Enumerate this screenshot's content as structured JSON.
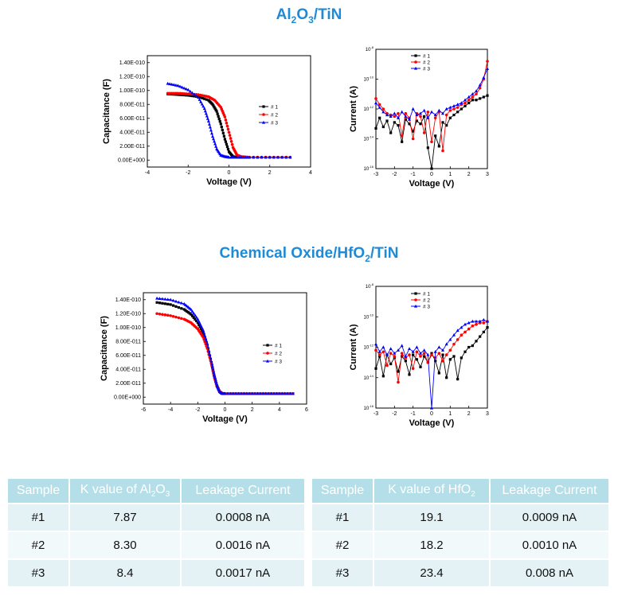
{
  "sections": [
    {
      "title_main": "Al",
      "title_sub1": "2",
      "title_mid": "O",
      "title_sub2": "3",
      "title_end": "/TiN"
    },
    {
      "title_main": "Chemical Oxide/HfO",
      "title_sub1": "2",
      "title_mid": "",
      "title_sub2": "",
      "title_end": "/TiN"
    }
  ],
  "chart_data": [
    {
      "type": "line",
      "id": "cv1",
      "xlabel": "Voltage (V)",
      "ylabel": "Capacitance (F)",
      "xlim": [
        -4,
        4
      ],
      "ylim": [
        -1e-11,
        1.5e-10
      ],
      "xticks": [
        "-4",
        "-2",
        "0",
        "2",
        "4"
      ],
      "yticks": [
        "0.00E+000",
        "2.00E-011",
        "4.00E-011",
        "6.00E-011",
        "8.00E-011",
        "1.00E-010",
        "1.20E-010",
        "1.40E-010"
      ],
      "legend": [
        "# 1",
        "# 2",
        "# 3"
      ],
      "colors": [
        "#000000",
        "#ff0000",
        "#0000ff"
      ],
      "series": [
        {
          "name": "# 1",
          "x": [
            -3,
            -2.5,
            -2,
            -1.5,
            -1,
            -0.8,
            -0.6,
            -0.4,
            -0.2,
            0,
            0.2,
            0.5,
            1,
            2,
            3
          ],
          "y": [
            9.5e-11,
            9.4e-11,
            9.3e-11,
            9.1e-11,
            8.6e-11,
            8e-11,
            7e-11,
            5.2e-11,
            3e-11,
            1.2e-11,
            5e-12,
            4e-12,
            4e-12,
            4e-12,
            4e-12
          ]
        },
        {
          "name": "# 2",
          "x": [
            -3,
            -2.5,
            -2,
            -1.5,
            -1,
            -0.7,
            -0.4,
            -0.2,
            0,
            0.2,
            0.4,
            0.6,
            1,
            2,
            3
          ],
          "y": [
            9.6e-11,
            9.6e-11,
            9.5e-11,
            9.4e-11,
            9.1e-11,
            8.6e-11,
            7.6e-11,
            6.2e-11,
            4e-11,
            1.8e-11,
            7e-12,
            5e-12,
            4e-12,
            4e-12,
            4e-12
          ]
        },
        {
          "name": "# 3",
          "x": [
            -3,
            -2.5,
            -2,
            -1.5,
            -1.2,
            -1,
            -0.8,
            -0.6,
            -0.4,
            -0.2,
            0,
            0.5,
            1,
            2,
            3
          ],
          "y": [
            1.1e-10,
            1.07e-10,
            1.01e-10,
            9e-11,
            7.4e-11,
            5.6e-11,
            3.4e-11,
            1.6e-11,
            7e-12,
            5e-12,
            4e-12,
            4e-12,
            4e-12,
            4e-12,
            4e-12
          ]
        }
      ]
    },
    {
      "type": "line",
      "id": "iv1",
      "xlabel": "Voltage (V)",
      "ylabel": "Current (A)",
      "xlim": [
        -3,
        3
      ],
      "ylim_log": [
        -16,
        -8
      ],
      "yscale": "log",
      "xticks": [
        "-3",
        "-2",
        "-1",
        "0",
        "1",
        "2",
        "3"
      ],
      "yticks": [
        "10<sup>-16</sup>",
        "10<sup>-14</sup>",
        "10<sup>-12</sup>",
        "10<sup>-10</sup>",
        "10<sup>-8</sup>"
      ],
      "legend": [
        "# 1",
        "# 2",
        "# 3"
      ],
      "colors": [
        "#000000",
        "#ff0000",
        "#0000ff"
      ],
      "series": [
        {
          "name": "# 1",
          "x": [
            -3,
            -2.8,
            -2.6,
            -2.4,
            -2.2,
            -2,
            -1.8,
            -1.6,
            -1.4,
            -1.2,
            -1,
            -0.8,
            -0.6,
            -0.4,
            -0.2,
            0,
            0.2,
            0.4,
            0.6,
            0.8,
            1,
            1.2,
            1.4,
            1.6,
            1.8,
            2,
            2.2,
            2.4,
            2.6,
            2.8,
            3
          ],
          "logy": [
            -13.3,
            -12.6,
            -13.2,
            -12.8,
            -13.6,
            -12.9,
            -13.1,
            -14.2,
            -12.7,
            -13.0,
            -13.5,
            -12.8,
            -13.0,
            -12.5,
            -14.6,
            -16,
            -13.8,
            -14.5,
            -12.9,
            -13.1,
            -12.6,
            -12.4,
            -12.2,
            -12.0,
            -11.8,
            -11.6,
            -11.4,
            -11.4,
            -11.3,
            -11.2,
            -11.1
          ]
        },
        {
          "name": "# 2",
          "x": [
            -3,
            -2.8,
            -2.6,
            -2.4,
            -2.2,
            -2,
            -1.8,
            -1.6,
            -1.4,
            -1.2,
            -1,
            -0.8,
            -0.6,
            -0.4,
            -0.2,
            0,
            0.2,
            0.4,
            0.6,
            0.8,
            1,
            1.2,
            1.4,
            1.6,
            1.8,
            2,
            2.2,
            2.4,
            2.6,
            2.8,
            3
          ],
          "logy": [
            -11.3,
            -11.7,
            -12.0,
            -12.3,
            -12.4,
            -12.5,
            -12.3,
            -13.8,
            -12.3,
            -12.6,
            -14.0,
            -12.3,
            -12.5,
            -13.6,
            -12.2,
            -14.2,
            -12.6,
            -12.2,
            -14.8,
            -12.4,
            -12.1,
            -12.0,
            -11.9,
            -11.7,
            -11.6,
            -11.4,
            -11.2,
            -11.0,
            -10.6,
            -10.0,
            -8.8
          ]
        },
        {
          "name": "# 3",
          "x": [
            -3,
            -2.8,
            -2.6,
            -2.4,
            -2.2,
            -2,
            -1.8,
            -1.6,
            -1.4,
            -1.2,
            -1,
            -0.8,
            -0.6,
            -0.4,
            -0.2,
            0,
            0.2,
            0.4,
            0.6,
            0.8,
            1,
            1.2,
            1.4,
            1.6,
            1.8,
            2,
            2.2,
            2.4,
            2.6,
            2.8,
            3
          ],
          "logy": [
            -11.6,
            -11.9,
            -12.2,
            -12.4,
            -12.5,
            -12.3,
            -12.6,
            -12.2,
            -12.5,
            -12.7,
            -12.0,
            -12.4,
            -12.3,
            -12.1,
            -12.6,
            -12.2,
            -12.4,
            -12.1,
            -12.3,
            -12.0,
            -11.9,
            -11.8,
            -11.7,
            -11.6,
            -11.4,
            -11.2,
            -11.0,
            -10.8,
            -10.4,
            -9.9,
            -9.3
          ]
        }
      ]
    },
    {
      "type": "line",
      "id": "cv2",
      "xlabel": "Voltage (V)",
      "ylabel": "Capacitance (F)",
      "xlim": [
        -6,
        6
      ],
      "ylim": [
        -1e-11,
        1.5e-10
      ],
      "xticks": [
        "-6",
        "-4",
        "-2",
        "0",
        "2",
        "4",
        "6"
      ],
      "yticks": [
        "0.00E+000",
        "2.00E-011",
        "4.00E-011",
        "6.00E-011",
        "8.00E-011",
        "1.00E-010",
        "1.20E-010",
        "1.40E-010"
      ],
      "legend": [
        "# 1",
        "# 2",
        "# 3"
      ],
      "colors": [
        "#000000",
        "#ff0000",
        "#0000ff"
      ],
      "series": [
        {
          "name": "# 1",
          "x": [
            -5,
            -4,
            -3,
            -2.5,
            -2,
            -1.6,
            -1.3,
            -1,
            -0.8,
            -0.6,
            -0.4,
            -0.2,
            0,
            1,
            2,
            3,
            4,
            5
          ],
          "y": [
            1.36e-10,
            1.33e-10,
            1.26e-10,
            1.19e-10,
            1.07e-10,
            9.2e-11,
            7.4e-11,
            5e-11,
            3.2e-11,
            1.7e-11,
            8e-12,
            5e-12,
            5e-12,
            5e-12,
            5e-12,
            5e-12,
            5e-12,
            5e-12
          ]
        },
        {
          "name": "# 2",
          "x": [
            -5,
            -4,
            -3,
            -2.5,
            -2,
            -1.6,
            -1.3,
            -1,
            -0.8,
            -0.6,
            -0.4,
            -0.2,
            0,
            1,
            2,
            3,
            4,
            5
          ],
          "y": [
            1.2e-10,
            1.17e-10,
            1.12e-10,
            1.07e-10,
            9.8e-11,
            8.6e-11,
            7e-11,
            4.8e-11,
            3e-11,
            1.6e-11,
            8e-12,
            5e-12,
            5e-12,
            5e-12,
            5e-12,
            5e-12,
            5e-12,
            5e-12
          ]
        },
        {
          "name": "# 3",
          "x": [
            -5,
            -4,
            -3,
            -2.5,
            -2,
            -1.6,
            -1.3,
            -1,
            -0.8,
            -0.6,
            -0.4,
            -0.2,
            0,
            1,
            2,
            3,
            4,
            5
          ],
          "y": [
            1.42e-10,
            1.4e-10,
            1.34e-10,
            1.26e-10,
            1.12e-10,
            9.6e-11,
            7.7e-11,
            5.1e-11,
            3.2e-11,
            1.7e-11,
            8e-12,
            5e-12,
            5e-12,
            5e-12,
            5e-12,
            5e-12,
            5e-12,
            5e-12
          ]
        }
      ]
    },
    {
      "type": "line",
      "id": "iv2",
      "xlabel": "Voltage (V)",
      "ylabel": "Current (A)",
      "xlim": [
        -3,
        3
      ],
      "ylim_log": [
        -16,
        -8
      ],
      "yscale": "log",
      "xticks": [
        "-3",
        "-2",
        "-1",
        "0",
        "1",
        "2",
        "3"
      ],
      "yticks": [
        "10<sup>-16</sup>",
        "10<sup>-14</sup>",
        "10<sup>-12</sup>",
        "10<sup>-10</sup>",
        "10<sup>-8</sup>"
      ],
      "legend": [
        "# 1",
        "# 2",
        "# 3"
      ],
      "colors": [
        "#000000",
        "#ff0000",
        "#0000ff"
      ],
      "series": [
        {
          "name": "# 1",
          "x": [
            -3,
            -2.8,
            -2.6,
            -2.4,
            -2.2,
            -2,
            -1.8,
            -1.6,
            -1.4,
            -1.2,
            -1,
            -0.8,
            -0.6,
            -0.4,
            -0.2,
            0,
            0.2,
            0.4,
            0.6,
            0.8,
            1,
            1.2,
            1.4,
            1.6,
            1.8,
            2,
            2.2,
            2.4,
            2.6,
            2.8,
            3
          ],
          "logy": [
            -13.4,
            -12.6,
            -13.9,
            -12.5,
            -13.1,
            -12.7,
            -13.6,
            -12.6,
            -12.9,
            -13.8,
            -12.5,
            -12.8,
            -13.3,
            -12.6,
            -13.0,
            -12.4,
            -12.9,
            -13.7,
            -12.5,
            -14.0,
            -12.8,
            -12.6,
            -14.1,
            -12.7,
            -12.3,
            -12.0,
            -11.9,
            -11.6,
            -11.3,
            -11.0,
            -10.7
          ]
        },
        {
          "name": "# 2",
          "x": [
            -3,
            -2.8,
            -2.6,
            -2.4,
            -2.2,
            -2,
            -1.8,
            -1.6,
            -1.4,
            -1.2,
            -1,
            -0.8,
            -0.6,
            -0.4,
            -0.2,
            0,
            0.2,
            0.4,
            0.6,
            0.8,
            1,
            1.2,
            1.4,
            1.6,
            1.8,
            2,
            2.2,
            2.4,
            2.6,
            2.8,
            3
          ],
          "logy": [
            -12.2,
            -12.5,
            -12.3,
            -13.2,
            -12.4,
            -12.6,
            -14.3,
            -12.4,
            -12.7,
            -12.5,
            -13.4,
            -12.3,
            -12.6,
            -12.4,
            -13.0,
            -12.5,
            -12.7,
            -12.4,
            -12.9,
            -12.5,
            -12.2,
            -11.8,
            -11.5,
            -11.2,
            -11.0,
            -10.8,
            -10.6,
            -10.5,
            -10.4,
            -10.4,
            -10.3
          ]
        },
        {
          "name": "# 3",
          "x": [
            -3,
            -2.8,
            -2.6,
            -2.4,
            -2.2,
            -2,
            -1.8,
            -1.6,
            -1.4,
            -1.2,
            -1,
            -0.8,
            -0.6,
            -0.4,
            -0.2,
            0,
            0.2,
            0.4,
            0.6,
            0.8,
            1,
            1.2,
            1.4,
            1.6,
            1.8,
            2,
            2.2,
            2.4,
            2.6,
            2.8,
            3
          ],
          "logy": [
            -11.8,
            -12.3,
            -12.0,
            -12.5,
            -12.1,
            -12.4,
            -12.2,
            -11.9,
            -12.6,
            -12.1,
            -12.3,
            -12.0,
            -12.4,
            -12.2,
            -12.5,
            -16,
            -12.3,
            -12.0,
            -12.2,
            -11.8,
            -11.5,
            -11.2,
            -10.9,
            -10.7,
            -10.5,
            -10.4,
            -10.3,
            -10.3,
            -10.3,
            -10.2,
            -10.3
          ]
        }
      ]
    }
  ],
  "tables": [
    {
      "headers": [
        "Sample",
        "K value of Al",
        "2",
        "O",
        "3",
        "Leakage Current"
      ],
      "rows": [
        [
          "#1",
          "7.87",
          "0.0008 nA"
        ],
        [
          "#2",
          "8.30",
          "0.0016 nA"
        ],
        [
          "#3",
          "8.4",
          "0.0017 nA"
        ]
      ]
    },
    {
      "headers": [
        "Sample",
        "K value of HfO",
        "2",
        "",
        "",
        "Leakage Current"
      ],
      "rows": [
        [
          "#1",
          "19.1",
          "0.0009 nA"
        ],
        [
          "#2",
          "18.2",
          "0.0010 nA"
        ],
        [
          "#3",
          "23.4",
          "0.008 nA"
        ]
      ]
    }
  ]
}
